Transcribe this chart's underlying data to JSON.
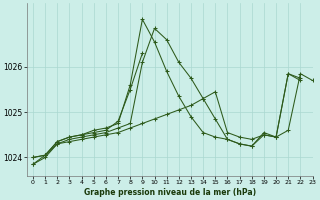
{
  "xlabel": "Graphe pression niveau de la mer (hPa)",
  "ylim": [
    1023.6,
    1027.4
  ],
  "xlim": [
    -0.5,
    23
  ],
  "yticks": [
    1024,
    1025,
    1026
  ],
  "xticks": [
    0,
    1,
    2,
    3,
    4,
    5,
    6,
    7,
    8,
    9,
    10,
    11,
    12,
    13,
    14,
    15,
    16,
    17,
    18,
    19,
    20,
    21,
    22,
    23
  ],
  "bg_color": "#cceee8",
  "grid_color": "#aad8d0",
  "line_color": "#2d5a1b",
  "series": [
    [
      1023.85,
      1024.05,
      1024.35,
      1024.45,
      1024.5,
      1024.6,
      1024.65,
      1024.75,
      1025.6,
      1027.05,
      1026.55,
      1025.9,
      1025.35,
      1024.9,
      1024.55,
      1024.45,
      1024.4,
      1024.3,
      1024.25,
      1024.5,
      1024.45,
      1025.85,
      1025.75,
      null
    ],
    [
      1023.85,
      1024.0,
      1024.3,
      1024.4,
      1024.45,
      1024.5,
      1024.55,
      1024.65,
      1024.75,
      1026.1,
      1026.85,
      1026.6,
      1026.1,
      1025.75,
      1025.3,
      1024.85,
      1024.4,
      1024.3,
      1024.25,
      1024.55,
      1024.45,
      1025.85,
      1025.7,
      null
    ],
    [
      1024.0,
      1024.05,
      1024.35,
      1024.45,
      1024.5,
      1024.55,
      1024.6,
      1024.8,
      1025.5,
      1026.3,
      null,
      null,
      null,
      null,
      null,
      null,
      null,
      null,
      null,
      null,
      null,
      null,
      null,
      null
    ],
    [
      1024.0,
      1024.05,
      1024.3,
      1024.35,
      1024.4,
      1024.45,
      1024.5,
      1024.55,
      1024.65,
      1024.75,
      1024.85,
      1024.95,
      1025.05,
      1025.15,
      1025.3,
      1025.45,
      1024.55,
      1024.45,
      1024.4,
      1024.5,
      1024.45,
      1024.6,
      1025.85,
      1025.7
    ]
  ]
}
